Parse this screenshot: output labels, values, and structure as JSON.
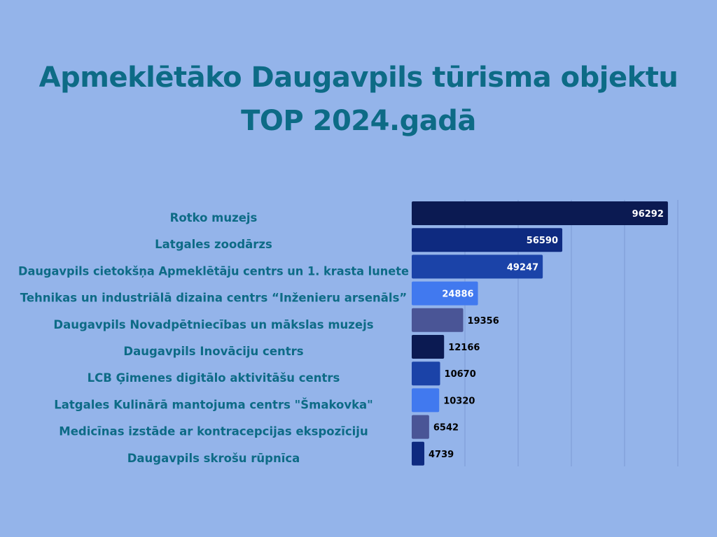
{
  "chart_data": {
    "type": "bar",
    "orientation": "horizontal",
    "title_lines": [
      "Apmeklētāko Daugavpils tūrisma objektu",
      "TOP 2024.gadā"
    ],
    "categories": [
      "Rotko muzejs",
      "Latgales zoodārzs",
      "Daugavpils cietokšņa Apmeklētāju centrs un 1. krasta lunete",
      "Tehnikas un industriālā dizaina centrs “Inženieru arsenāls”",
      "Daugavpils Novadpētniecības un mākslas muzejs",
      "Daugavpils Inovāciju centrs",
      "LCB Ģimenes digitālo aktivitāšu centrs",
      "Latgales Kulinārā mantojuma centrs \"Šmakovka\"",
      "Medicīnas izstāde ar kontracepcijas ekspozīciju",
      "Daugavpils skrošu rūpnīca"
    ],
    "values": [
      96292,
      56590,
      49247,
      24886,
      19356,
      12166,
      10670,
      10320,
      6542,
      4739
    ],
    "bar_colors": [
      "#0b1a52",
      "#0e2a80",
      "#1b43a8",
      "#4179ef",
      "#4a5596",
      "#0b1a52",
      "#1b43a8",
      "#4179ef",
      "#4a5596",
      "#0e2a80"
    ],
    "xlim": [
      0,
      100000
    ],
    "grid": true,
    "legend": "none"
  }
}
